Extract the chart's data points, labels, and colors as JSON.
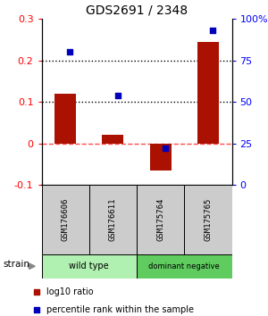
{
  "title": "GDS2691 / 2348",
  "samples": [
    "GSM176606",
    "GSM176611",
    "GSM175764",
    "GSM175765"
  ],
  "log10_ratio": [
    0.12,
    0.02,
    -0.065,
    0.245
  ],
  "percentile_rank": [
    0.8,
    0.54,
    0.22,
    0.93
  ],
  "groups": [
    {
      "label": "wild type",
      "color": "#b0f0b0",
      "samples": [
        0,
        1
      ]
    },
    {
      "label": "dominant negative",
      "color": "#60cc60",
      "samples": [
        2,
        3
      ]
    }
  ],
  "ylim_left": [
    -0.1,
    0.3
  ],
  "ylim_right": [
    0.0,
    1.0
  ],
  "yticks_left": [
    -0.1,
    0.0,
    0.1,
    0.2,
    0.3
  ],
  "yticks_right": [
    0.0,
    0.25,
    0.5,
    0.75,
    1.0
  ],
  "yticklabels_left": [
    "-0.1",
    "0",
    "0.1",
    "0.2",
    "0.3"
  ],
  "yticklabels_right": [
    "0",
    "25",
    "50",
    "75",
    "100%"
  ],
  "bar_color": "#aa1100",
  "dot_color": "#0000bb",
  "hline_y": 0.0,
  "dotted_lines": [
    0.1,
    0.2
  ],
  "strain_label": "strain",
  "legend_bar": "log10 ratio",
  "legend_dot": "percentile rank within the sample",
  "sample_box_color": "#cccccc",
  "fig_bg": "#ffffff"
}
